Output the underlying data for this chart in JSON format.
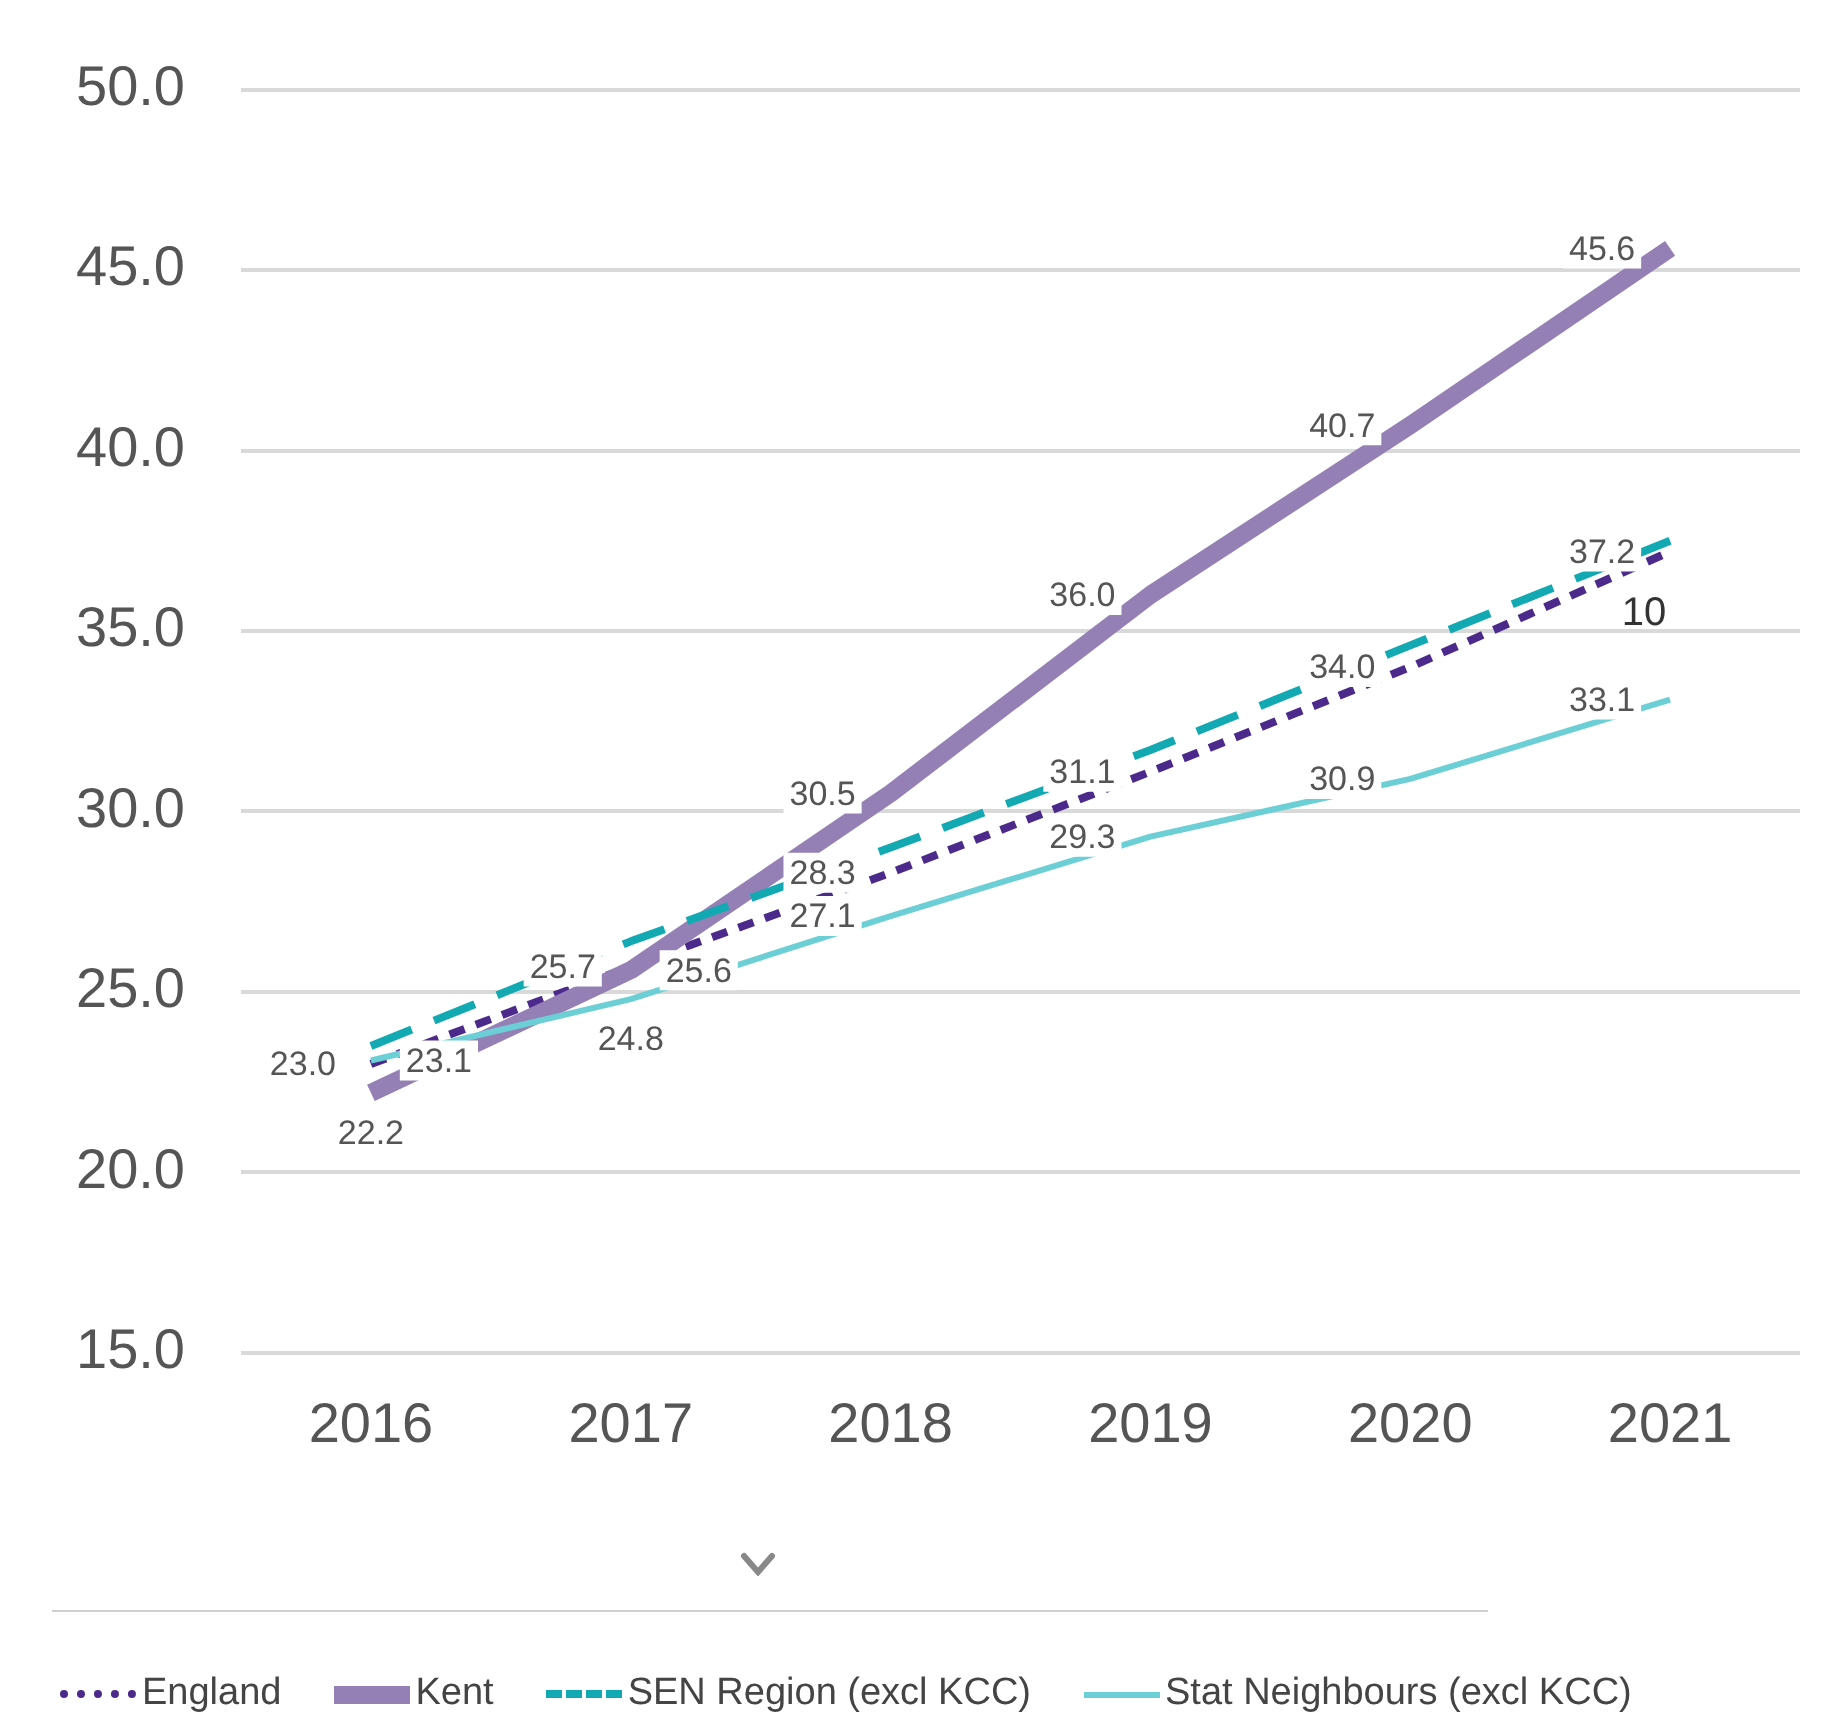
{
  "chart_data": {
    "type": "line",
    "categories": [
      "2016",
      "2017",
      "2018",
      "2019",
      "2020",
      "2021"
    ],
    "series": [
      {
        "name": "England",
        "color": "#4b2a8c",
        "line_style": "dotted",
        "values": [
          23.0,
          25.7,
          28.3,
          31.1,
          34.0,
          37.2
        ],
        "value_labels": [
          "23.0",
          "25.7",
          "28.3",
          "31.1",
          "34.0",
          "37.2"
        ]
      },
      {
        "name": "Kent",
        "color": "#9580b5",
        "line_style": "solid",
        "values": [
          22.2,
          25.6,
          30.5,
          36.0,
          40.7,
          45.6
        ],
        "value_labels": [
          "22.2",
          "25.6",
          "30.5",
          "36.0",
          "40.7",
          "45.6"
        ]
      },
      {
        "name": "SEN Region (excl KCC)",
        "color": "#13a9b2",
        "line_style": "dashed",
        "values": [
          23.5,
          26.4,
          29.0,
          31.7,
          34.6,
          37.5
        ]
      },
      {
        "name": "Stat Neighbours (excl KCC)",
        "color": "#6ccfd6",
        "line_style": "solid",
        "values": [
          23.1,
          24.8,
          27.1,
          29.3,
          30.9,
          33.1
        ],
        "value_labels": [
          "23.1",
          "24.8",
          "27.1",
          "29.3",
          "30.9",
          "33.1"
        ]
      }
    ],
    "ylim": [
      15,
      50
    ],
    "yticks": [
      {
        "value": 15,
        "label": "15.0"
      },
      {
        "value": 20,
        "label": "20.0"
      },
      {
        "value": 25,
        "label": "25.0"
      },
      {
        "value": 30,
        "label": "30.0"
      },
      {
        "value": 35,
        "label": "35.0"
      },
      {
        "value": 40,
        "label": "40.0"
      },
      {
        "value": 45,
        "label": "45.0"
      },
      {
        "value": 50,
        "label": "50.0"
      }
    ],
    "grid": "y",
    "legend": "bottom",
    "marker": "none",
    "annotations": [
      "10"
    ]
  }
}
